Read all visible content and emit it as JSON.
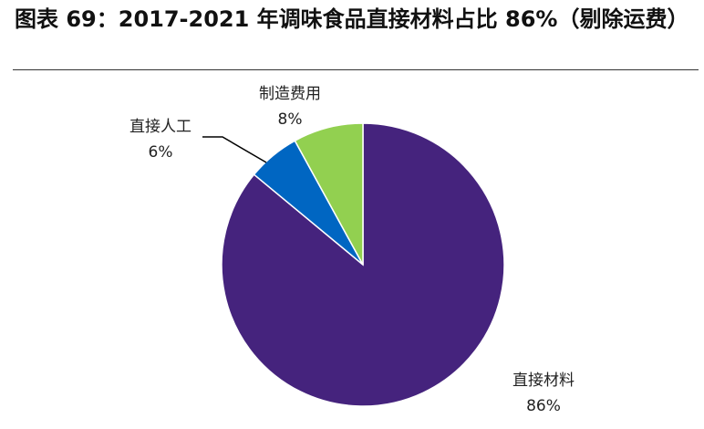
{
  "title": "图表 69：2017-2021 年调味食品直接材料占比 86%（剔除运费）",
  "chart_data": {
    "type": "pie",
    "title": "图表 69：2017-2021 年调味食品直接材料占比 86%（剔除运费）",
    "slices": [
      {
        "name": "直接材料",
        "value": 86,
        "label": "86%",
        "color": "#45237D"
      },
      {
        "name": "直接人工",
        "value": 6,
        "label": "6%",
        "color": "#0066C2"
      },
      {
        "name": "制造费用",
        "value": 8,
        "label": "8%",
        "color": "#92D050"
      }
    ],
    "legend": "none",
    "start": "12 o'clock, clockwise"
  }
}
